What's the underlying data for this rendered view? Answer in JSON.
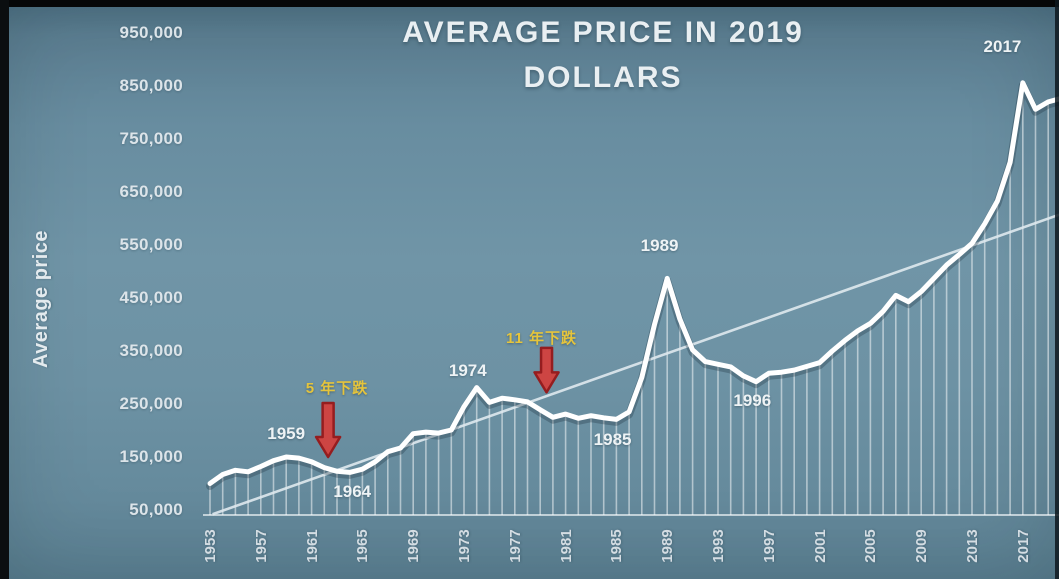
{
  "title": "AVERAGE PRICE IN 2019 DOLLARS",
  "y_axis_title": "Average price",
  "colors": {
    "background": "#6b90a2",
    "price_line": "#ffffff",
    "trend_line": "#dfe9ee",
    "stems": "#ffffff",
    "baseline": "#d9e3e9",
    "arrow_fill": "#cd4543",
    "arrow_stroke": "#951d1f",
    "cjk_text": "#e5c43c",
    "annotation_text": "#eef3f5",
    "tick_text": "#d8e1e7"
  },
  "chart_data": {
    "type": "line",
    "title": "AVERAGE PRICE IN 2019 DOLLARS",
    "xlabel": "",
    "ylabel": "Average price",
    "units": "2019 dollars",
    "ylim": [
      50000,
      950000
    ],
    "grid": false,
    "legend": false,
    "x": [
      1953,
      1954,
      1955,
      1956,
      1957,
      1958,
      1959,
      1960,
      1961,
      1962,
      1963,
      1964,
      1965,
      1966,
      1967,
      1968,
      1969,
      1970,
      1971,
      1972,
      1973,
      1974,
      1975,
      1976,
      1977,
      1978,
      1979,
      1980,
      1981,
      1982,
      1983,
      1984,
      1985,
      1986,
      1987,
      1988,
      1989,
      1990,
      1991,
      1992,
      1993,
      1994,
      1995,
      1996,
      1997,
      1998,
      1999,
      2000,
      2001,
      2002,
      2003,
      2004,
      2005,
      2006,
      2007,
      2008,
      2009,
      2010,
      2011,
      2012,
      2013,
      2014,
      2015,
      2016,
      2017,
      2018,
      2019
    ],
    "values": [
      100000,
      117000,
      125000,
      122000,
      132000,
      143000,
      150000,
      148000,
      141000,
      130000,
      123000,
      121000,
      127000,
      141000,
      160000,
      167000,
      194000,
      197000,
      195000,
      201000,
      245000,
      281000,
      253000,
      261000,
      258000,
      254000,
      239000,
      225000,
      231000,
      223000,
      228000,
      224000,
      221000,
      235000,
      300000,
      400000,
      487000,
      410000,
      352000,
      330000,
      325000,
      320000,
      303000,
      292000,
      308000,
      310000,
      314000,
      321000,
      328000,
      350000,
      370000,
      388000,
      402000,
      425000,
      455000,
      443000,
      462000,
      487000,
      512000,
      532000,
      553000,
      590000,
      633000,
      706000,
      856000,
      806000,
      820000
    ],
    "edge_point": {
      "year": 2020.2,
      "value": 828000
    },
    "y_ticks": [
      {
        "label": "950,000",
        "value": 950000
      },
      {
        "label": "850,000",
        "value": 850000
      },
      {
        "label": "750,000",
        "value": 750000
      },
      {
        "label": "650,000",
        "value": 650000
      },
      {
        "label": "550,000",
        "value": 550000
      },
      {
        "label": "450,000",
        "value": 450000
      },
      {
        "label": "350,000",
        "value": 350000
      },
      {
        "label": "250,000",
        "value": 250000
      },
      {
        "label": "150,000",
        "value": 150000
      },
      {
        "label": "50,000",
        "value": 50000
      }
    ],
    "x_ticks": [
      1953,
      1957,
      1961,
      1965,
      1969,
      1973,
      1977,
      1981,
      1985,
      1989,
      1993,
      1997,
      2001,
      2005,
      2009,
      2013,
      2017
    ],
    "trend_line": {
      "start": {
        "year": 1953.2,
        "value": 42000
      },
      "end": {
        "year": 2020.2,
        "value": 610000
      }
    },
    "annotations": [
      {
        "text": "1959",
        "year": 1959.0,
        "value": 193000,
        "style": "year"
      },
      {
        "text": "1964",
        "year": 1964.2,
        "value": 84000,
        "style": "year"
      },
      {
        "text": "1974",
        "year": 1973.3,
        "value": 312000,
        "style": "year"
      },
      {
        "text": "1985",
        "year": 1984.7,
        "value": 182000,
        "style": "year"
      },
      {
        "text": "1989",
        "year": 1988.4,
        "value": 548000,
        "style": "year"
      },
      {
        "text": "1996",
        "year": 1995.7,
        "value": 256000,
        "style": "year"
      },
      {
        "text": "2017",
        "year": 2015.4,
        "value": 924000,
        "style": "year"
      },
      {
        "text": "5 年下跌",
        "year": 1963.0,
        "value": 284000,
        "style": "cjk"
      },
      {
        "text": "11 年下跌",
        "year": 1979.1,
        "value": 378000,
        "style": "cjk"
      }
    ],
    "arrows": [
      {
        "name": "decline-1959-1964",
        "year": 1962.3,
        "value_top": 252000,
        "value_tip": 150000
      },
      {
        "name": "decline-1974-1985",
        "year": 1979.5,
        "value_top": 356000,
        "value_tip": 272000
      }
    ]
  }
}
